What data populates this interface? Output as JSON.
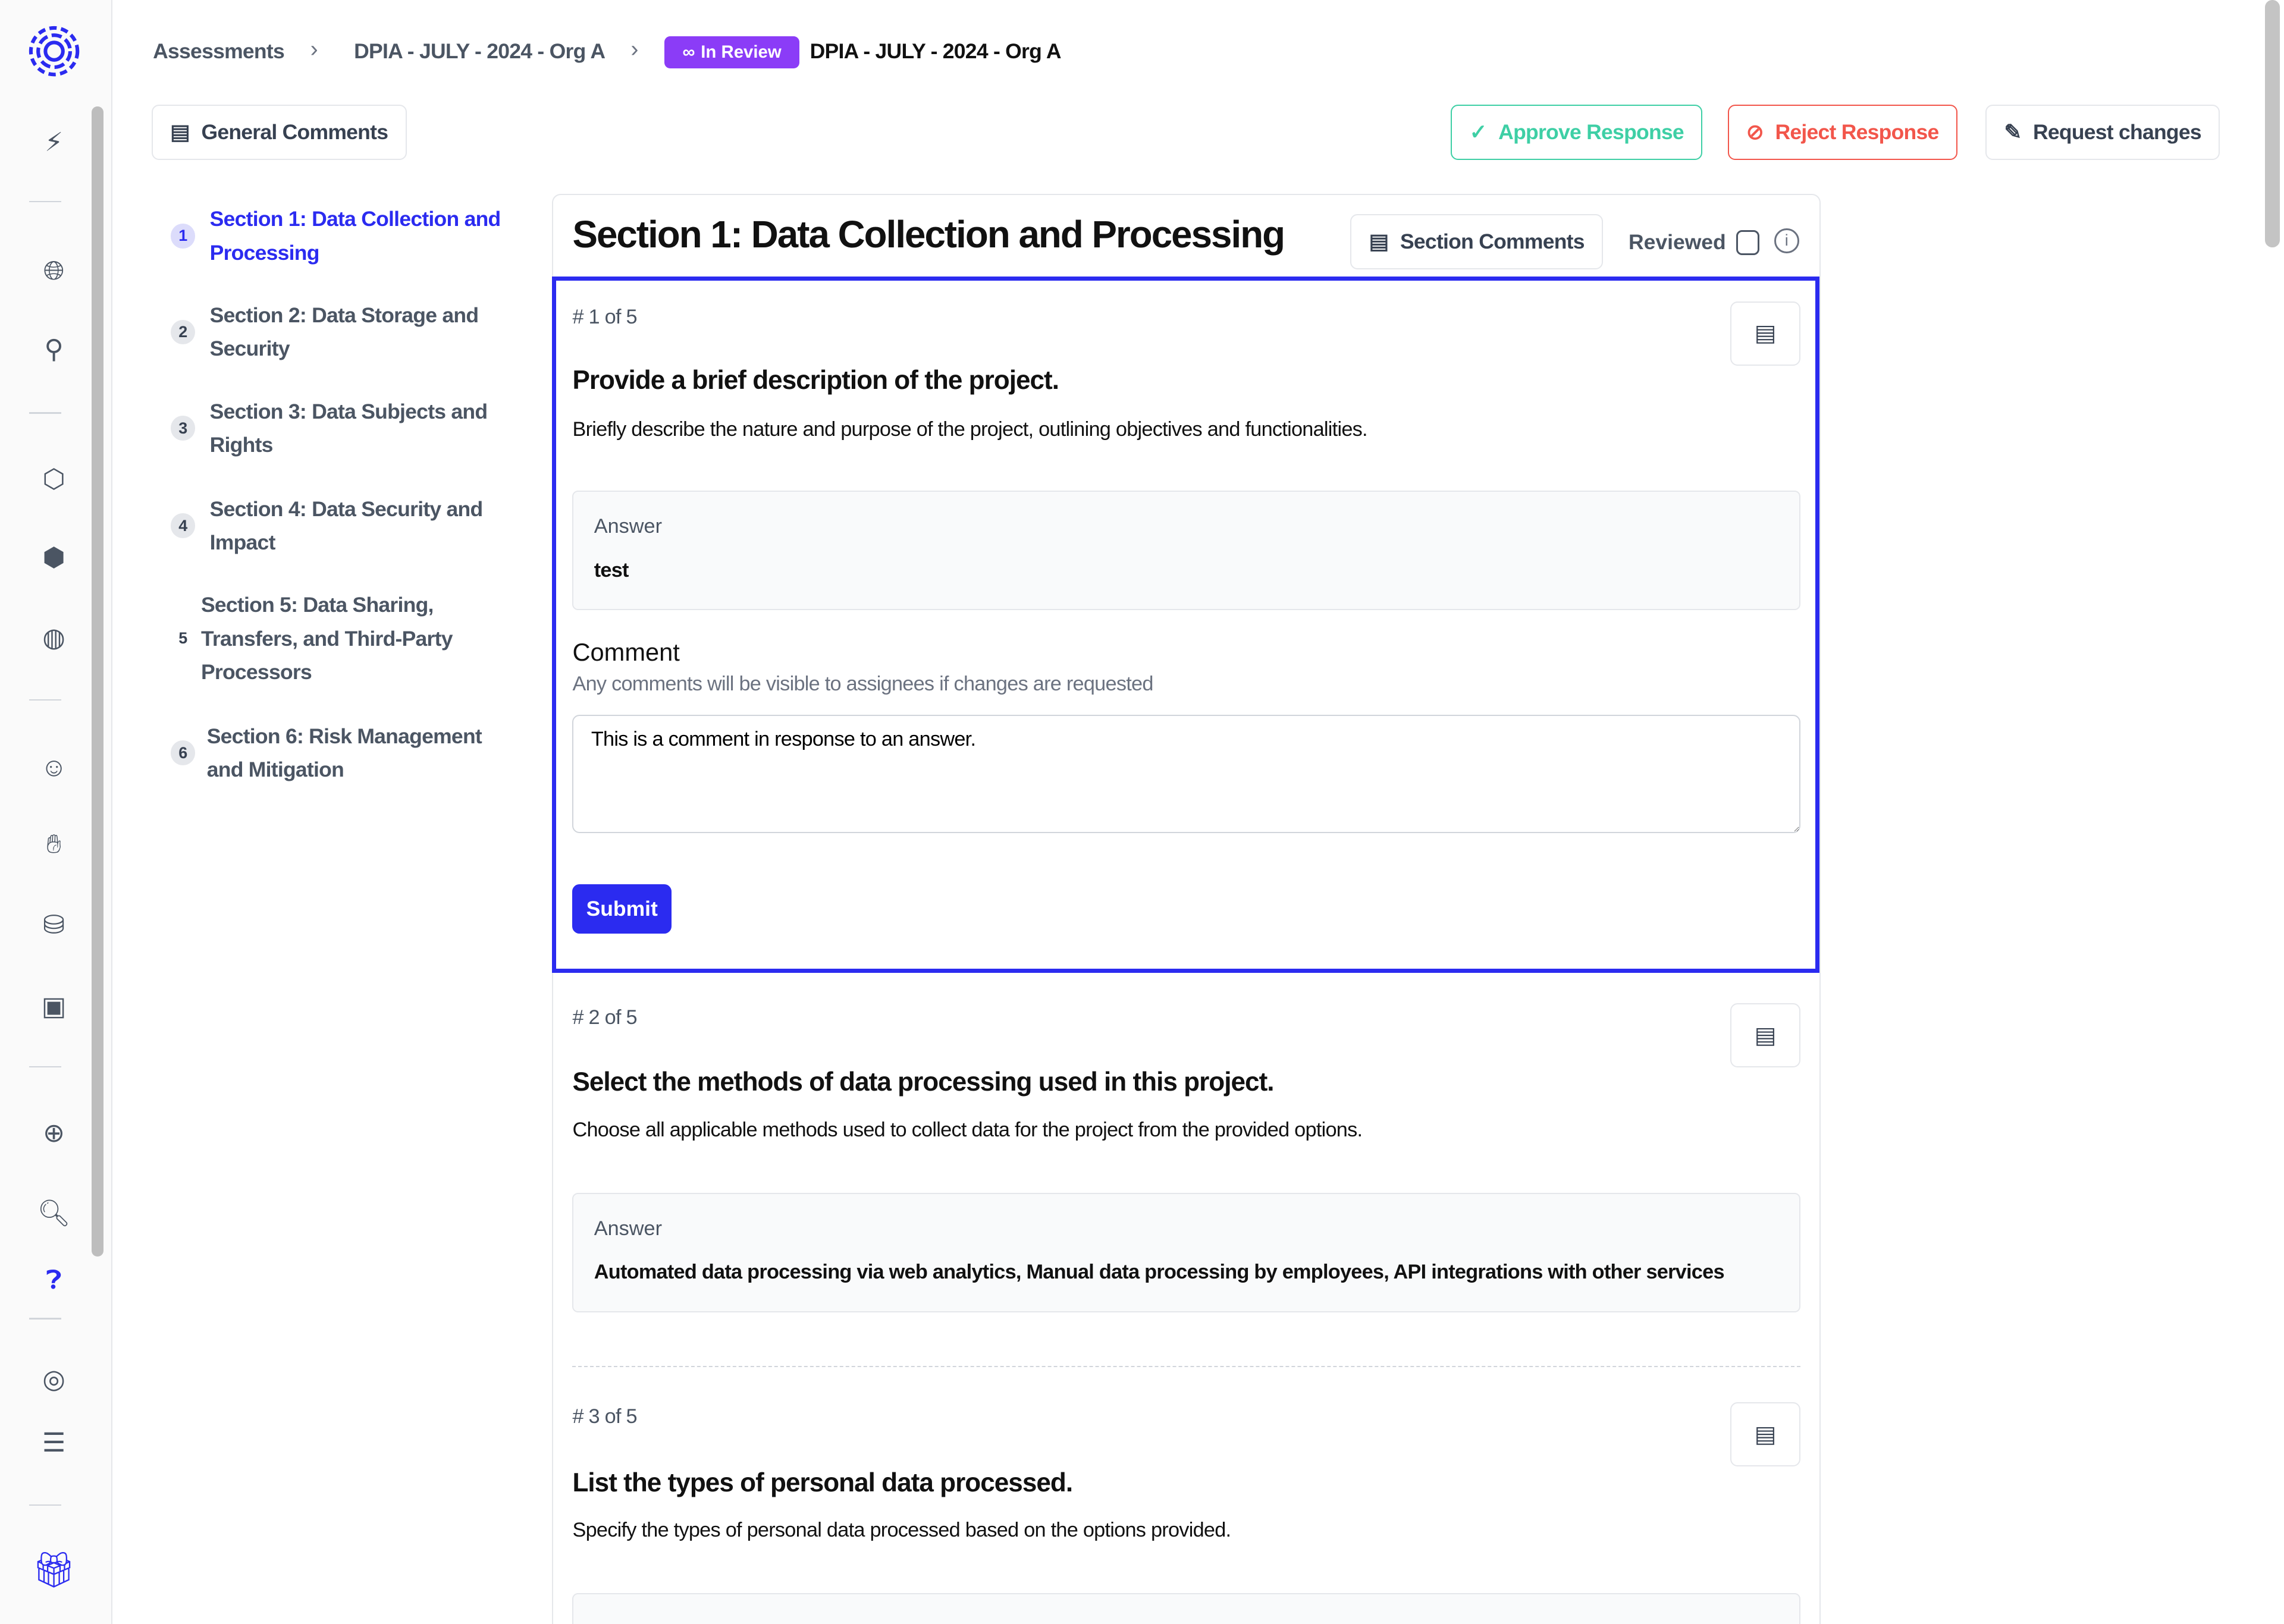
{
  "breadcrumb": {
    "items": [
      "Assessments",
      "DPIA - JULY - 2024 - Org A"
    ],
    "status": "In Review",
    "current": "DPIA - JULY - 2024 - Org A"
  },
  "toolbar": {
    "general_comments": "General Comments",
    "approve": "Approve Response",
    "reject": "Reject Response",
    "request_changes": "Request changes"
  },
  "colors": {
    "accent": "#2b2bf0",
    "badge": "#8b3cf7",
    "approve": "#3ecfa5",
    "reject": "#f2564b"
  },
  "sections": [
    {
      "num": "1",
      "label": "Section 1: Data Collection and Processing",
      "active": true
    },
    {
      "num": "2",
      "label": "Section 2: Data Storage and Security"
    },
    {
      "num": "3",
      "label": "Section 3: Data Subjects and Rights"
    },
    {
      "num": "4",
      "label": "Section 4: Data Security and Impact"
    },
    {
      "num": "5",
      "label": "Section 5: Data Sharing, Transfers, and Third-Party Processors"
    },
    {
      "num": "6",
      "label": "Section 6: Risk Management and Mitigation"
    }
  ],
  "main": {
    "title": "Section 1: Data Collection and Processing",
    "section_comments": "Section Comments",
    "reviewed_label": "Reviewed",
    "reviewed": false,
    "questions": [
      {
        "num": "# 1 of 5",
        "title": "Provide a brief description of the project.",
        "desc": "Briefly describe the nature and purpose of the project, outlining objectives and functionalities.",
        "answer_label": "Answer",
        "answer": "test"
      },
      {
        "num": "# 2 of 5",
        "title": "Select the methods of data processing used in this project.",
        "desc": "Choose all applicable methods used to collect data for the project from the provided options.",
        "answer_label": "Answer",
        "answer": "Automated data processing via web analytics, Manual data processing by employees, API integrations with other services"
      },
      {
        "num": "# 3 of 5",
        "title": "List the types of personal data processed.",
        "desc": "Specify the types of personal data processed based on the options provided."
      }
    ],
    "comment": {
      "label": "Comment",
      "hint": "Any comments will be visible to assignees if changes are requested",
      "value": "This is a comment in response to an answer.",
      "submit": "Submit"
    }
  }
}
